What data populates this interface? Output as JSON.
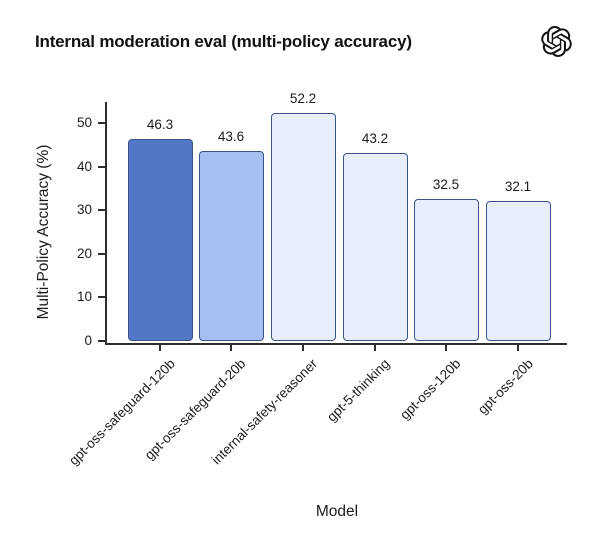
{
  "header": {
    "title": "Internal moderation eval (multi-policy accuracy)",
    "logo_icon": "openai-logo"
  },
  "chart_data": {
    "type": "bar",
    "title": "Internal moderation eval (multi-policy accuracy)",
    "xlabel": "Model",
    "ylabel": "Multi-Policy Accuracy (%)",
    "categories": [
      "gpt-oss-safeguard-120b",
      "gpt-oss-safeguard-20b",
      "internal-safety-reasoner",
      "gpt-5-thinking",
      "gpt-oss-120b",
      "gpt-oss-20b"
    ],
    "values": [
      46.3,
      43.6,
      52.2,
      43.2,
      32.5,
      32.1
    ],
    "value_labels": [
      "46.3",
      "43.6",
      "52.2",
      "43.2",
      "32.5",
      "32.1"
    ],
    "yticks": [
      0,
      10,
      20,
      30,
      40,
      50
    ],
    "ylim": [
      0,
      55
    ],
    "grid": false,
    "legend_position": "none",
    "bar_fill_colors": [
      "#5277c5",
      "#a7bff0",
      "#e7edfc",
      "#e7edfc",
      "#e7edfc",
      "#e7edfc"
    ],
    "bar_edge_color": "#3a5387",
    "axis_color": "#2e2e2e",
    "text_color": "#1c1c1c"
  }
}
